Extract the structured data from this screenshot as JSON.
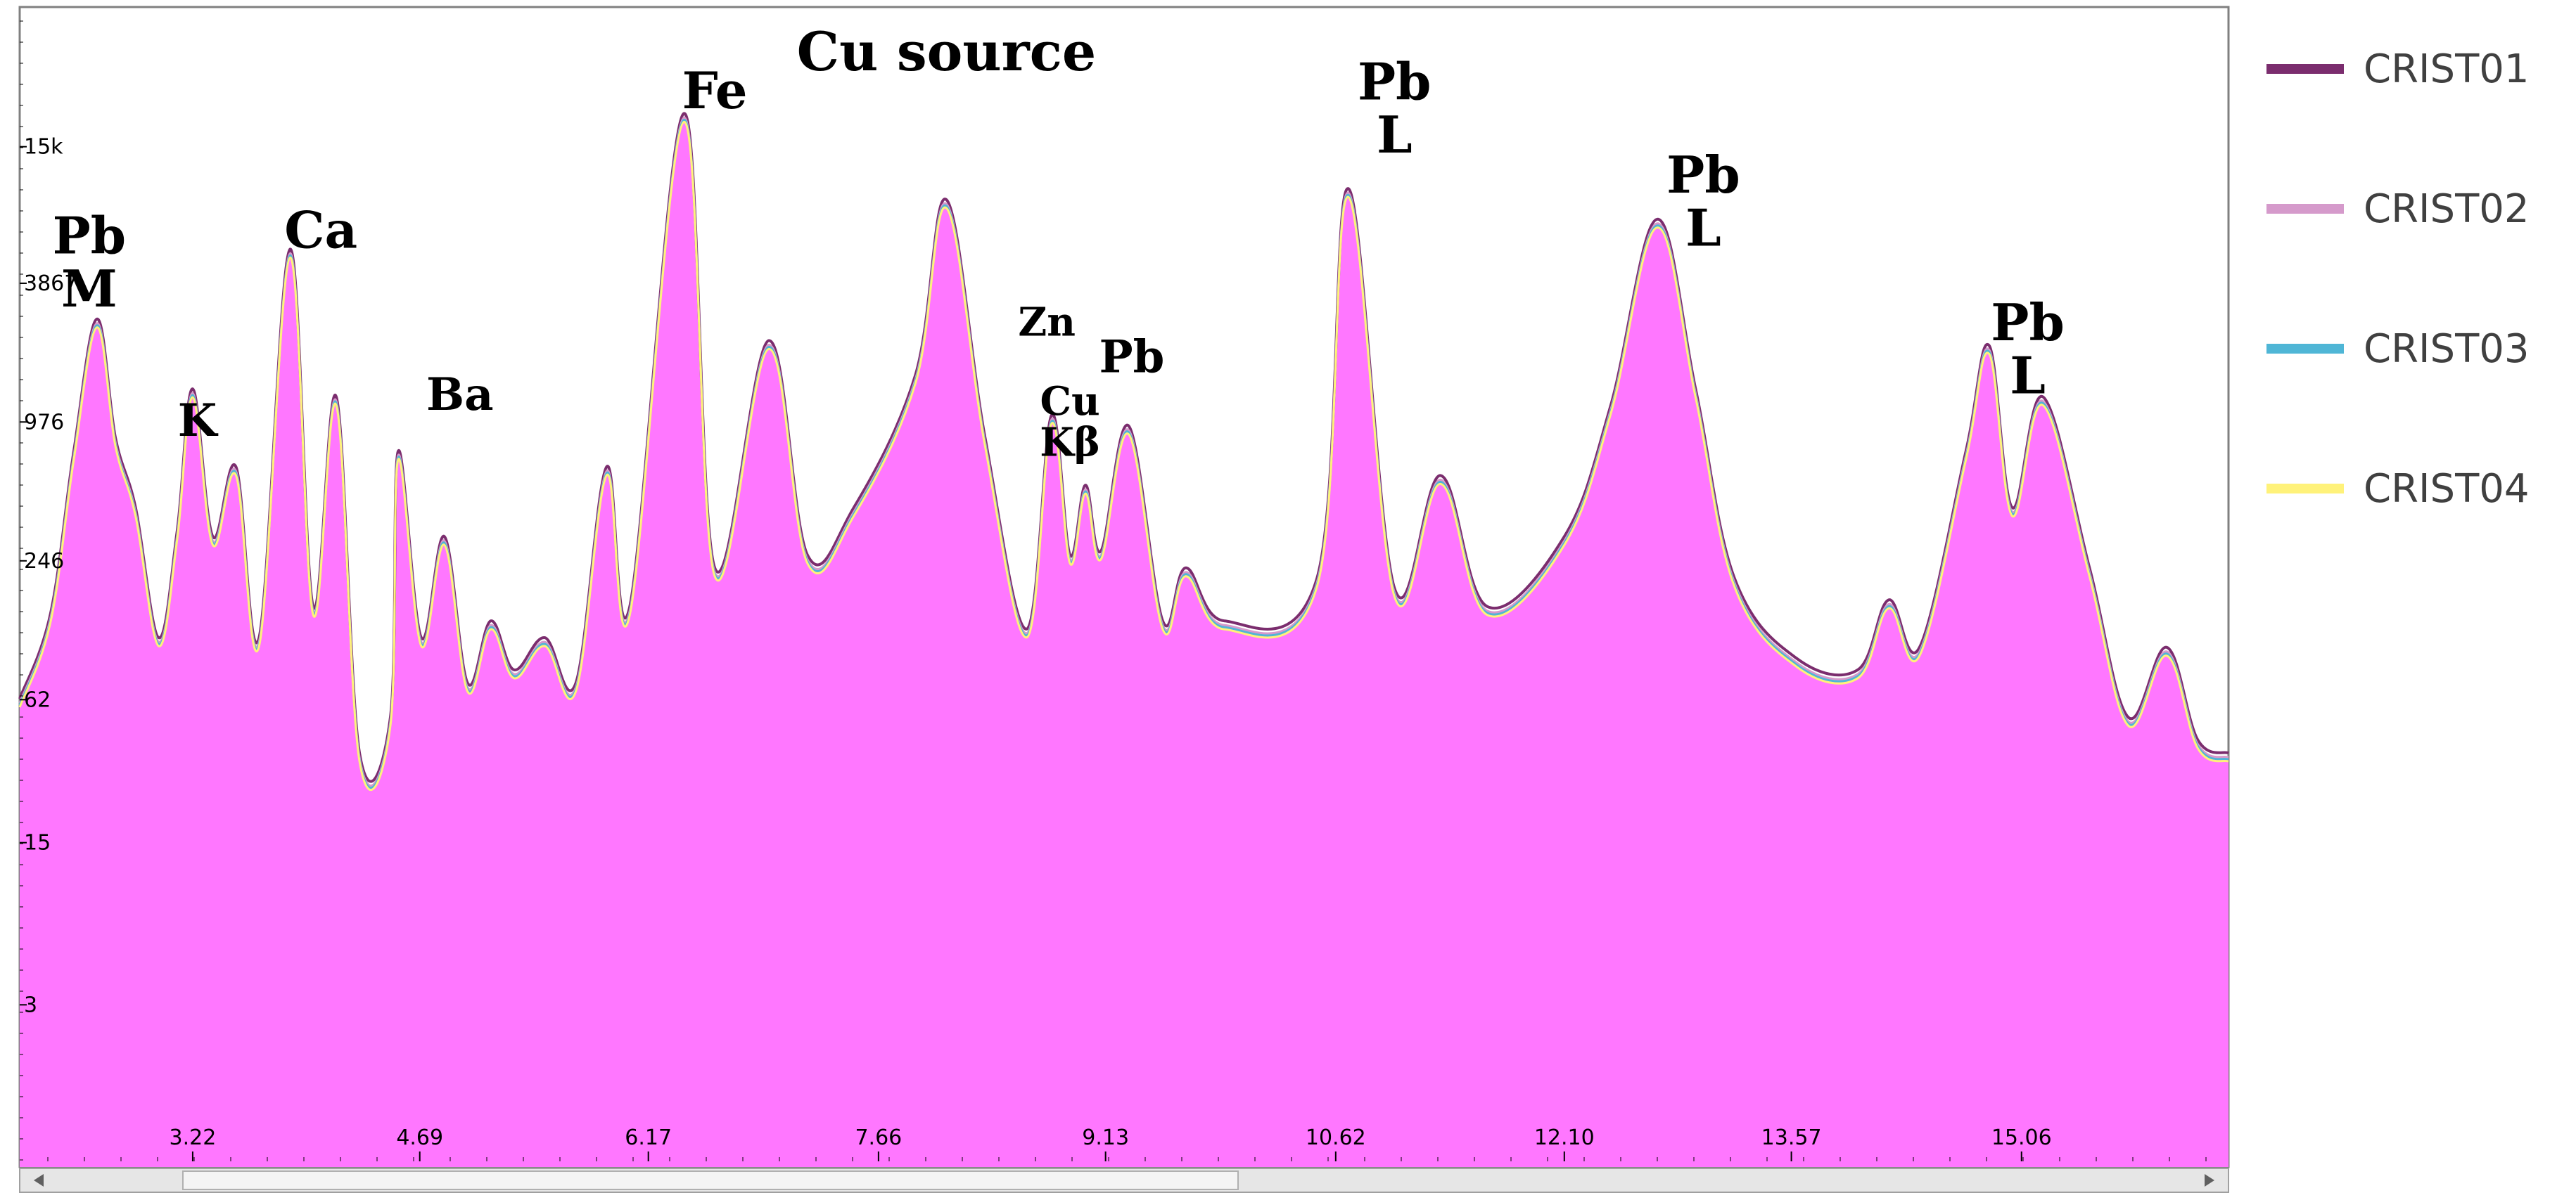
{
  "chart_data": {
    "type": "area",
    "title": "",
    "xlabel": "",
    "ylabel": "",
    "xlim": [
      2.1,
      16.4
    ],
    "y_scale": "log",
    "ylim": [
      0.6,
      60000
    ],
    "x_ticks": [
      "3.22",
      "4.69",
      "6.17",
      "7.66",
      "9.13",
      "10.62",
      "12.10",
      "13.57",
      "15.06"
    ],
    "y_ticks": [
      "15k",
      "3867",
      "976",
      "246",
      "62",
      "15",
      "3"
    ],
    "legend_position": "right",
    "colors": {
      "fill": "#ff77ff",
      "background": "#ffffff",
      "frame": "#808080"
    },
    "series": [
      {
        "name": "CRIST01",
        "color": "#7b2d6e"
      },
      {
        "name": "CRIST02",
        "color": "#d59acb"
      },
      {
        "name": "CRIST03",
        "color": "#4fb6d6"
      },
      {
        "name": "CRIST04",
        "color": "#fff27a"
      }
    ],
    "peaks": [
      {
        "x": 2.1,
        "y": 60
      },
      {
        "x": 2.3,
        "y": 140
      },
      {
        "x": 2.45,
        "y": 700
      },
      {
        "x": 2.6,
        "y": 2600
      },
      {
        "x": 2.72,
        "y": 800
      },
      {
        "x": 2.85,
        "y": 400
      },
      {
        "x": 3.0,
        "y": 110
      },
      {
        "x": 3.12,
        "y": 320
      },
      {
        "x": 3.22,
        "y": 1300
      },
      {
        "x": 3.35,
        "y": 300
      },
      {
        "x": 3.5,
        "y": 600
      },
      {
        "x": 3.65,
        "y": 110
      },
      {
        "x": 3.85,
        "y": 5200
      },
      {
        "x": 4.0,
        "y": 150
      },
      {
        "x": 4.15,
        "y": 1200
      },
      {
        "x": 4.3,
        "y": 35
      },
      {
        "x": 4.5,
        "y": 50
      },
      {
        "x": 4.55,
        "y": 700
      },
      {
        "x": 4.7,
        "y": 110
      },
      {
        "x": 4.85,
        "y": 300
      },
      {
        "x": 5.0,
        "y": 70
      },
      {
        "x": 5.15,
        "y": 130
      },
      {
        "x": 5.3,
        "y": 80
      },
      {
        "x": 5.5,
        "y": 110
      },
      {
        "x": 5.7,
        "y": 70
      },
      {
        "x": 5.9,
        "y": 600
      },
      {
        "x": 6.05,
        "y": 150
      },
      {
        "x": 6.4,
        "y": 20000
      },
      {
        "x": 6.6,
        "y": 220
      },
      {
        "x": 6.95,
        "y": 2100
      },
      {
        "x": 7.2,
        "y": 250
      },
      {
        "x": 7.5,
        "y": 400
      },
      {
        "x": 7.9,
        "y": 1500
      },
      {
        "x": 8.1,
        "y": 8500
      },
      {
        "x": 8.35,
        "y": 800
      },
      {
        "x": 8.62,
        "y": 120
      },
      {
        "x": 8.78,
        "y": 1000
      },
      {
        "x": 8.9,
        "y": 250
      },
      {
        "x": 9.0,
        "y": 500
      },
      {
        "x": 9.1,
        "y": 260
      },
      {
        "x": 9.28,
        "y": 900
      },
      {
        "x": 9.5,
        "y": 130
      },
      {
        "x": 9.65,
        "y": 220
      },
      {
        "x": 9.9,
        "y": 130
      },
      {
        "x": 10.5,
        "y": 200
      },
      {
        "x": 10.7,
        "y": 9500
      },
      {
        "x": 11.0,
        "y": 180
      },
      {
        "x": 11.3,
        "y": 550
      },
      {
        "x": 11.6,
        "y": 150
      },
      {
        "x": 12.1,
        "y": 300
      },
      {
        "x": 12.4,
        "y": 1100
      },
      {
        "x": 12.7,
        "y": 7000
      },
      {
        "x": 12.95,
        "y": 1300
      },
      {
        "x": 13.2,
        "y": 200
      },
      {
        "x": 13.6,
        "y": 90
      },
      {
        "x": 14.0,
        "y": 80
      },
      {
        "x": 14.2,
        "y": 160
      },
      {
        "x": 14.4,
        "y": 100
      },
      {
        "x": 14.7,
        "y": 700
      },
      {
        "x": 14.85,
        "y": 2000
      },
      {
        "x": 15.0,
        "y": 400
      },
      {
        "x": 15.2,
        "y": 1200
      },
      {
        "x": 15.5,
        "y": 220
      },
      {
        "x": 15.75,
        "y": 50
      },
      {
        "x": 16.0,
        "y": 100
      },
      {
        "x": 16.2,
        "y": 40
      },
      {
        "x": 16.4,
        "y": 35
      }
    ],
    "annotations": [
      {
        "lines": [
          "Pb",
          "M"
        ],
        "x": 2.55,
        "y": 5200,
        "size": 72
      },
      {
        "lines": [
          "K"
        ],
        "x": 3.25,
        "y": 850,
        "size": 64
      },
      {
        "lines": [
          "Ca"
        ],
        "x": 4.05,
        "y": 5500,
        "size": 72
      },
      {
        "lines": [
          "Ba"
        ],
        "x": 4.95,
        "y": 1100,
        "size": 64
      },
      {
        "lines": [
          "Fe"
        ],
        "x": 6.6,
        "y": 22000,
        "size": 72
      },
      {
        "lines": [
          "Cu source"
        ],
        "x": 8.1,
        "y": 32000,
        "size": 76
      },
      {
        "lines": [
          "Zn"
        ],
        "x": 8.75,
        "y": 2300,
        "size": 56
      },
      {
        "lines": [
          "Cu",
          "Kβ"
        ],
        "x": 8.9,
        "y": 1050,
        "size": 56
      },
      {
        "lines": [
          "Pb"
        ],
        "x": 9.3,
        "y": 1600,
        "size": 64
      },
      {
        "lines": [
          "Pb",
          "L"
        ],
        "x": 11.0,
        "y": 24000,
        "size": 72
      },
      {
        "lines": [
          "Pb",
          "L"
        ],
        "x": 13.0,
        "y": 9500,
        "size": 72
      },
      {
        "lines": [
          "Pb",
          "L"
        ],
        "x": 15.1,
        "y": 2200,
        "size": 72
      }
    ]
  }
}
